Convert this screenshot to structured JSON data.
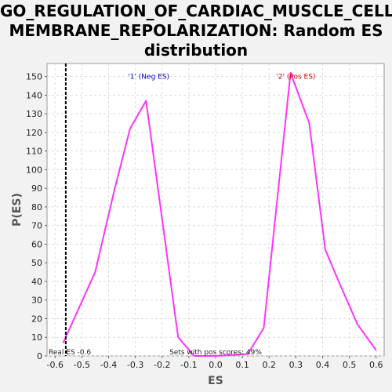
{
  "chart_data": {
    "type": "line",
    "title_lines": [
      "GO_REGULATION_OF_CARDIAC_MUSCLE_CELL_",
      "MEMBRANE_REPOLARIZATION: Random ES",
      "distribution"
    ],
    "xlabel": "ES",
    "ylabel": "P(ES)",
    "xlim": [
      -0.63,
      0.63
    ],
    "ylim": [
      0,
      157
    ],
    "xticks": [
      -0.6,
      -0.5,
      -0.4,
      -0.3,
      -0.2,
      -0.1,
      0.0,
      0.1,
      0.2,
      0.3,
      0.4,
      0.5,
      0.6
    ],
    "xtick_labels": [
      "-0.6",
      "-0.5",
      "-0.4",
      "-0.3",
      "-0.2",
      "-0.1",
      "0.0",
      "0.1",
      "0.2",
      "0.3",
      "0.4",
      "0.5",
      "0.6"
    ],
    "yticks": [
      0,
      10,
      20,
      30,
      40,
      50,
      60,
      70,
      80,
      90,
      100,
      110,
      120,
      130,
      140,
      150
    ],
    "grid": true,
    "series": [
      {
        "name": "",
        "color": "#ff33ff",
        "x": [
          -0.57,
          -0.45,
          -0.38,
          -0.32,
          -0.26,
          -0.14,
          -0.08,
          0.0,
          0.12,
          0.18,
          0.28,
          0.35,
          0.41,
          0.46,
          0.53,
          0.6
        ],
        "y": [
          7,
          45,
          88,
          122,
          137,
          10,
          0,
          0,
          1,
          15,
          152,
          125,
          57,
          40,
          17,
          3
        ]
      }
    ],
    "real_es": {
      "value": -0.56,
      "label": "Real ES -0.6",
      "color": "#000000"
    },
    "annotations": [
      {
        "text": "'1' (Neg ES)",
        "x": -0.25,
        "y": 150,
        "color": "#0000cc"
      },
      {
        "text": "'2' (Pos ES)",
        "x": 0.3,
        "y": 150,
        "color": "#cc0000"
      }
    ],
    "footer_text": "Sets with pos scores: 49%"
  }
}
